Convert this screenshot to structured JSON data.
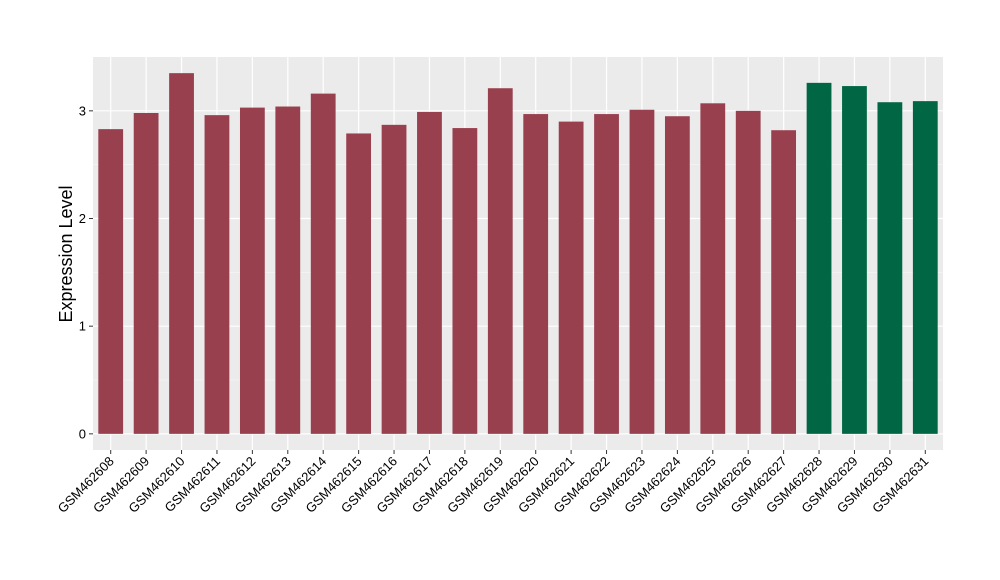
{
  "chart_data": {
    "type": "bar",
    "title": "",
    "xlabel": "",
    "ylabel": "Expression Level",
    "ylim": [
      -0.15,
      3.5
    ],
    "yticks": [
      0,
      1,
      2,
      3
    ],
    "grid": true,
    "categories": [
      "GSM462608",
      "GSM462609",
      "GSM462610",
      "GSM462611",
      "GSM462612",
      "GSM462613",
      "GSM462614",
      "GSM462615",
      "GSM462616",
      "GSM462617",
      "GSM462618",
      "GSM462619",
      "GSM462620",
      "GSM462621",
      "GSM462622",
      "GSM462623",
      "GSM462624",
      "GSM462625",
      "GSM462626",
      "GSM462627",
      "GSM462628",
      "GSM462629",
      "GSM462630",
      "GSM462631"
    ],
    "values": [
      2.83,
      2.98,
      3.35,
      2.96,
      3.03,
      3.04,
      3.16,
      2.79,
      2.87,
      2.99,
      2.84,
      3.21,
      2.97,
      2.9,
      2.97,
      3.01,
      2.95,
      3.07,
      3.0,
      2.82,
      3.26,
      3.23,
      3.08,
      3.09
    ],
    "bar_colors": [
      "#99404f",
      "#99404f",
      "#99404f",
      "#99404f",
      "#99404f",
      "#99404f",
      "#99404f",
      "#99404f",
      "#99404f",
      "#99404f",
      "#99404f",
      "#99404f",
      "#99404f",
      "#99404f",
      "#99404f",
      "#99404f",
      "#99404f",
      "#99404f",
      "#99404f",
      "#99404f",
      "#006644",
      "#006644",
      "#006644",
      "#006644"
    ],
    "colors": {
      "panel_background": "#ebebeb",
      "grid_major": "#ffffff",
      "grid_minor": "#f5f5f5",
      "tick": "#333333"
    }
  }
}
